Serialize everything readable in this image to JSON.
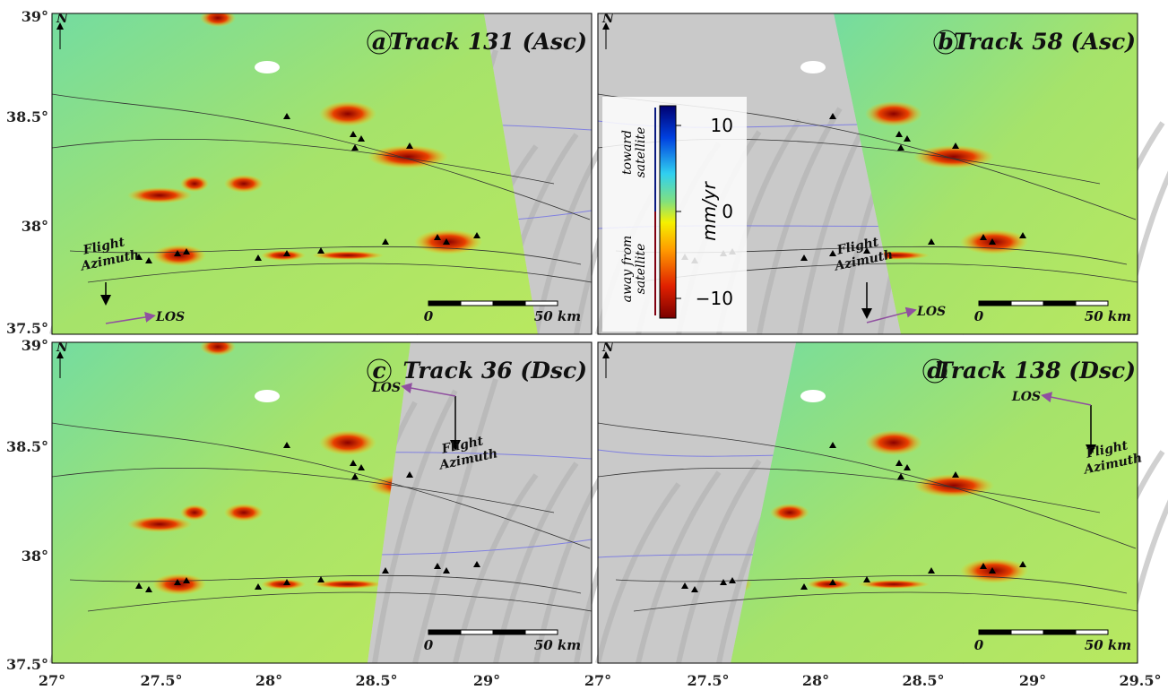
{
  "lat_ticks": [
    "39°",
    "38.5°",
    "38°",
    "37.5°"
  ],
  "lon_ticks_left": [
    "27°",
    "27.5°",
    "28°",
    "28.5°",
    "29°"
  ],
  "lon_ticks_right": [
    "27°",
    "27.5°",
    "28°",
    "28.5°",
    "29°",
    "29.5°"
  ],
  "panels": [
    {
      "letter": "a",
      "title": "Track 131 (Asc)",
      "scale_start": "0",
      "scale_end": "50 km",
      "los": "LOS",
      "azimuth": [
        "Flight",
        "Azimuth"
      ],
      "north": "N"
    },
    {
      "letter": "b",
      "title": "Track 58 (Asc)",
      "scale_start": "0",
      "scale_end": "50 km",
      "los": "LOS",
      "azimuth": [
        "Flight",
        "Azimuth"
      ],
      "north": "N"
    },
    {
      "letter": "c",
      "title": "Track 36 (Dsc)",
      "scale_start": "0",
      "scale_end": "50 km",
      "los": "LOS",
      "azimuth": [
        "Flight",
        "Azimuth"
      ],
      "north": "N"
    },
    {
      "letter": "d",
      "title": "Track 138 (Dsc)",
      "scale_start": "0",
      "scale_end": "50 km",
      "los": "LOS",
      "azimuth": [
        "Flight",
        "Azimuth"
      ],
      "north": "N"
    }
  ],
  "colorbar": {
    "unit": "mm/yr",
    "toward": [
      "toward",
      "satellite"
    ],
    "away": [
      "away from",
      "satellite"
    ],
    "ticks": [
      "10",
      "0",
      "−10"
    ]
  }
}
